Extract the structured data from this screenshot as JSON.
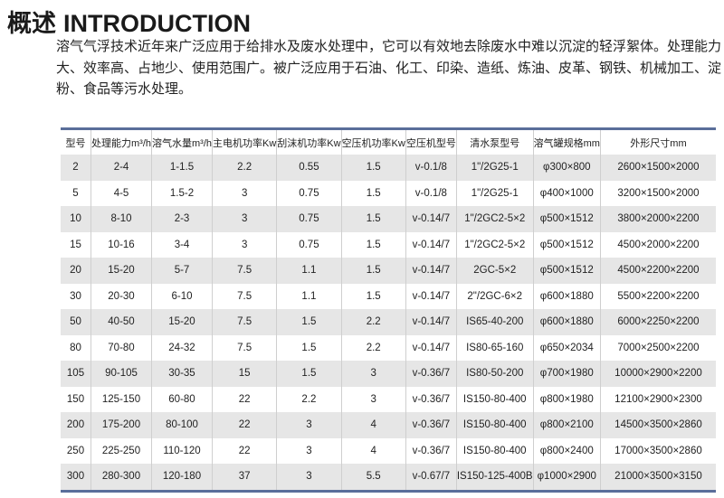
{
  "title": {
    "cn": "概述",
    "en": "INTRODUCTION"
  },
  "intro": "溶气气浮技术近年来广泛应用于给排水及废水处理中，它可以有效地去除废水中难以沉淀的轻浮絮体。处理能力大、效率高、占地少、使用范围广。被广泛应用于石油、化工、印染、造纸、炼油、皮革、钢铁、机械加工、淀粉、食品等污水处理。",
  "table": {
    "headers": [
      "型号",
      "处理能力m³/h",
      "溶气水量m³/h",
      "主电机功率Kw",
      "刮沫机功率Kw",
      "空压机功率Kw",
      "空压机型号",
      "清水泵型号",
      "溶气罐规格mm",
      "外形尺寸mm"
    ],
    "rows": [
      [
        "2",
        "2-4",
        "1-1.5",
        "2.2",
        "0.55",
        "1.5",
        "v-0.1/8",
        "1\"/2G25-1",
        "φ300×800",
        "2600×1500×2000"
      ],
      [
        "5",
        "4-5",
        "1.5-2",
        "3",
        "0.75",
        "1.5",
        "v-0.1/8",
        "1\"/2G25-1",
        "φ400×1000",
        "3200×1500×2000"
      ],
      [
        "10",
        "8-10",
        "2-3",
        "3",
        "0.75",
        "1.5",
        "v-0.14/7",
        "1\"/2GC2-5×2",
        "φ500×1512",
        "3800×2000×2200"
      ],
      [
        "15",
        "10-16",
        "3-4",
        "3",
        "0.75",
        "1.5",
        "v-0.14/7",
        "1\"/2GC2-5×2",
        "φ500×1512",
        "4500×2000×2200"
      ],
      [
        "20",
        "15-20",
        "5-7",
        "7.5",
        "1.1",
        "1.5",
        "v-0.14/7",
        "2GC-5×2",
        "φ500×1512",
        "4500×2200×2200"
      ],
      [
        "30",
        "20-30",
        "6-10",
        "7.5",
        "1.1",
        "1.5",
        "v-0.14/7",
        "2\"/2GC-6×2",
        "φ600×1880",
        "5500×2200×2200"
      ],
      [
        "50",
        "40-50",
        "15-20",
        "7.5",
        "1.5",
        "2.2",
        "v-0.14/7",
        "IS65-40-200",
        "φ600×1880",
        "6000×2250×2200"
      ],
      [
        "80",
        "70-80",
        "24-32",
        "7.5",
        "1.5",
        "2.2",
        "v-0.14/7",
        "IS80-65-160",
        "φ650×2034",
        "7000×2500×2200"
      ],
      [
        "105",
        "90-105",
        "30-35",
        "15",
        "1.5",
        "3",
        "v-0.36/7",
        "IS80-50-200",
        "φ700×1980",
        "10000×2900×2200"
      ],
      [
        "150",
        "125-150",
        "60-80",
        "22",
        "2.2",
        "3",
        "v-0.36/7",
        "IS150-80-400",
        "φ800×1980",
        "12100×2900×2300"
      ],
      [
        "200",
        "175-200",
        "80-100",
        "22",
        "3",
        "4",
        "v-0.36/7",
        "IS150-80-400",
        "φ800×2100",
        "14500×3500×2860"
      ],
      [
        "250",
        "225-250",
        "110-120",
        "22",
        "3",
        "4",
        "v-0.36/7",
        "IS150-80-400",
        "φ800×2400",
        "17000×3500×2860"
      ],
      [
        "300",
        "280-300",
        "120-180",
        "37",
        "3",
        "5.5",
        "v-0.67/7",
        "IS150-125-400B",
        "φ1000×2900",
        "21000×3500×3150"
      ]
    ]
  },
  "colors": {
    "table_border": "#5a6e9a",
    "row_stripe": "#e6e6e6"
  }
}
